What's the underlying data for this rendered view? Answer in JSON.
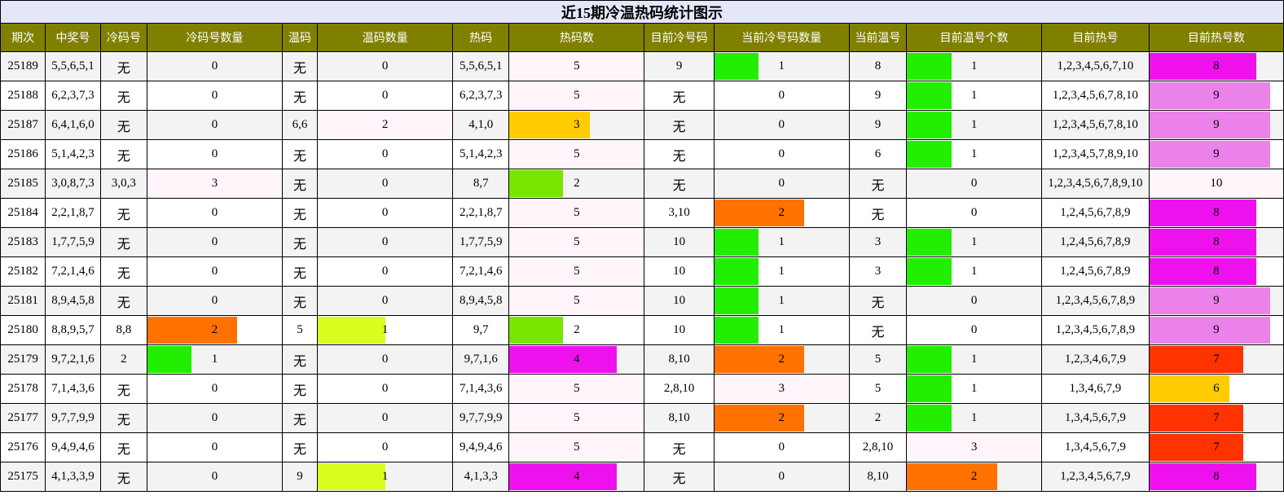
{
  "title": "近15期冷温热码统计图示",
  "headers": [
    "期次",
    "中奖号",
    "冷码号",
    "冷码号数量",
    "温码",
    "温码数量",
    "热码",
    "热码数",
    "目前冷号码",
    "当前冷号码数量",
    "当前温号",
    "目前温号个数",
    "目前热号",
    "目前热号数"
  ],
  "empty_text": "无",
  "colors": {
    "header_bg": "#808000",
    "title_bg": "#e4e6f9",
    "zero_tint": "#ffffff",
    "low_tint": "#fff5fb",
    "green": "#22ee00",
    "lime": "#77e600",
    "yellow_green": "#d8ff1f",
    "orange": "#ff7200",
    "gold": "#ffcc00",
    "red": "#ff3300",
    "magenta": "#ee11ee",
    "violet": "#ea82ea"
  },
  "rows": [
    {
      "period": "25189",
      "winning": "5,5,6,5,1",
      "cold": "无",
      "cold_count": {
        "value": "0",
        "fill": 0,
        "color": "zero_tint"
      },
      "warm": "无",
      "warm_count": {
        "value": "0",
        "fill": 0,
        "color": "zero_tint"
      },
      "hot": "5,5,6,5,1",
      "hot_count": {
        "value": "5",
        "fill": 1,
        "color": "low_tint"
      },
      "cur_cold": "9",
      "cur_cold_count": {
        "value": "1",
        "fill": 0.33,
        "color": "green"
      },
      "cur_warm": "8",
      "cur_warm_count": {
        "value": "1",
        "fill": 0.33,
        "color": "green"
      },
      "cur_hot": "1,2,3,4,5,6,7,10",
      "cur_hot_count": {
        "value": "8",
        "fill": 0.8,
        "color": "magenta"
      }
    },
    {
      "period": "25188",
      "winning": "6,2,3,7,3",
      "cold": "无",
      "cold_count": {
        "value": "0",
        "fill": 0,
        "color": "zero_tint"
      },
      "warm": "无",
      "warm_count": {
        "value": "0",
        "fill": 0,
        "color": "zero_tint"
      },
      "hot": "6,2,3,7,3",
      "hot_count": {
        "value": "5",
        "fill": 1,
        "color": "low_tint"
      },
      "cur_cold": "无",
      "cur_cold_count": {
        "value": "0",
        "fill": 0,
        "color": "zero_tint"
      },
      "cur_warm": "9",
      "cur_warm_count": {
        "value": "1",
        "fill": 0.33,
        "color": "green"
      },
      "cur_hot": "1,2,3,4,5,6,7,8,10",
      "cur_hot_count": {
        "value": "9",
        "fill": 0.9,
        "color": "violet"
      }
    },
    {
      "period": "25187",
      "winning": "6,4,1,6,0",
      "cold": "无",
      "cold_count": {
        "value": "0",
        "fill": 0,
        "color": "zero_tint"
      },
      "warm": "6,6",
      "warm_count": {
        "value": "2",
        "fill": 1,
        "color": "low_tint"
      },
      "hot": "4,1,0",
      "hot_count": {
        "value": "3",
        "fill": 0.6,
        "color": "gold"
      },
      "cur_cold": "无",
      "cur_cold_count": {
        "value": "0",
        "fill": 0,
        "color": "zero_tint"
      },
      "cur_warm": "9",
      "cur_warm_count": {
        "value": "1",
        "fill": 0.33,
        "color": "green"
      },
      "cur_hot": "1,2,3,4,5,6,7,8,10",
      "cur_hot_count": {
        "value": "9",
        "fill": 0.9,
        "color": "violet"
      }
    },
    {
      "period": "25186",
      "winning": "5,1,4,2,3",
      "cold": "无",
      "cold_count": {
        "value": "0",
        "fill": 0,
        "color": "zero_tint"
      },
      "warm": "无",
      "warm_count": {
        "value": "0",
        "fill": 0,
        "color": "zero_tint"
      },
      "hot": "5,1,4,2,3",
      "hot_count": {
        "value": "5",
        "fill": 1,
        "color": "low_tint"
      },
      "cur_cold": "无",
      "cur_cold_count": {
        "value": "0",
        "fill": 0,
        "color": "zero_tint"
      },
      "cur_warm": "6",
      "cur_warm_count": {
        "value": "1",
        "fill": 0.33,
        "color": "green"
      },
      "cur_hot": "1,2,3,4,5,7,8,9,10",
      "cur_hot_count": {
        "value": "9",
        "fill": 0.9,
        "color": "violet"
      }
    },
    {
      "period": "25185",
      "winning": "3,0,8,7,3",
      "cold": "3,0,3",
      "cold_count": {
        "value": "3",
        "fill": 1,
        "color": "low_tint"
      },
      "warm": "无",
      "warm_count": {
        "value": "0",
        "fill": 0,
        "color": "zero_tint"
      },
      "hot": "8,7",
      "hot_count": {
        "value": "2",
        "fill": 0.4,
        "color": "lime"
      },
      "cur_cold": "无",
      "cur_cold_count": {
        "value": "0",
        "fill": 0,
        "color": "zero_tint"
      },
      "cur_warm": "无",
      "cur_warm_count": {
        "value": "0",
        "fill": 0,
        "color": "zero_tint"
      },
      "cur_hot": "1,2,3,4,5,6,7,8,9,10",
      "cur_hot_count": {
        "value": "10",
        "fill": 1,
        "color": "low_tint"
      }
    },
    {
      "period": "25184",
      "winning": "2,2,1,8,7",
      "cold": "无",
      "cold_count": {
        "value": "0",
        "fill": 0,
        "color": "zero_tint"
      },
      "warm": "无",
      "warm_count": {
        "value": "0",
        "fill": 0,
        "color": "zero_tint"
      },
      "hot": "2,2,1,8,7",
      "hot_count": {
        "value": "5",
        "fill": 1,
        "color": "low_tint"
      },
      "cur_cold": "3,10",
      "cur_cold_count": {
        "value": "2",
        "fill": 0.67,
        "color": "orange"
      },
      "cur_warm": "无",
      "cur_warm_count": {
        "value": "0",
        "fill": 0,
        "color": "zero_tint"
      },
      "cur_hot": "1,2,4,5,6,7,8,9",
      "cur_hot_count": {
        "value": "8",
        "fill": 0.8,
        "color": "magenta"
      }
    },
    {
      "period": "25183",
      "winning": "1,7,7,5,9",
      "cold": "无",
      "cold_count": {
        "value": "0",
        "fill": 0,
        "color": "zero_tint"
      },
      "warm": "无",
      "warm_count": {
        "value": "0",
        "fill": 0,
        "color": "zero_tint"
      },
      "hot": "1,7,7,5,9",
      "hot_count": {
        "value": "5",
        "fill": 1,
        "color": "low_tint"
      },
      "cur_cold": "10",
      "cur_cold_count": {
        "value": "1",
        "fill": 0.33,
        "color": "green"
      },
      "cur_warm": "3",
      "cur_warm_count": {
        "value": "1",
        "fill": 0.33,
        "color": "green"
      },
      "cur_hot": "1,2,4,5,6,7,8,9",
      "cur_hot_count": {
        "value": "8",
        "fill": 0.8,
        "color": "magenta"
      }
    },
    {
      "period": "25182",
      "winning": "7,2,1,4,6",
      "cold": "无",
      "cold_count": {
        "value": "0",
        "fill": 0,
        "color": "zero_tint"
      },
      "warm": "无",
      "warm_count": {
        "value": "0",
        "fill": 0,
        "color": "zero_tint"
      },
      "hot": "7,2,1,4,6",
      "hot_count": {
        "value": "5",
        "fill": 1,
        "color": "low_tint"
      },
      "cur_cold": "10",
      "cur_cold_count": {
        "value": "1",
        "fill": 0.33,
        "color": "green"
      },
      "cur_warm": "3",
      "cur_warm_count": {
        "value": "1",
        "fill": 0.33,
        "color": "green"
      },
      "cur_hot": "1,2,4,5,6,7,8,9",
      "cur_hot_count": {
        "value": "8",
        "fill": 0.8,
        "color": "magenta"
      }
    },
    {
      "period": "25181",
      "winning": "8,9,4,5,8",
      "cold": "无",
      "cold_count": {
        "value": "0",
        "fill": 0,
        "color": "zero_tint"
      },
      "warm": "无",
      "warm_count": {
        "value": "0",
        "fill": 0,
        "color": "zero_tint"
      },
      "hot": "8,9,4,5,8",
      "hot_count": {
        "value": "5",
        "fill": 1,
        "color": "low_tint"
      },
      "cur_cold": "10",
      "cur_cold_count": {
        "value": "1",
        "fill": 0.33,
        "color": "green"
      },
      "cur_warm": "无",
      "cur_warm_count": {
        "value": "0",
        "fill": 0,
        "color": "zero_tint"
      },
      "cur_hot": "1,2,3,4,5,6,7,8,9",
      "cur_hot_count": {
        "value": "9",
        "fill": 0.9,
        "color": "violet"
      }
    },
    {
      "period": "25180",
      "winning": "8,8,9,5,7",
      "cold": "8,8",
      "cold_count": {
        "value": "2",
        "fill": 0.67,
        "color": "orange"
      },
      "warm": "5",
      "warm_count": {
        "value": "1",
        "fill": 0.5,
        "color": "yellow_green"
      },
      "hot": "9,7",
      "hot_count": {
        "value": "2",
        "fill": 0.4,
        "color": "lime"
      },
      "cur_cold": "10",
      "cur_cold_count": {
        "value": "1",
        "fill": 0.33,
        "color": "green"
      },
      "cur_warm": "无",
      "cur_warm_count": {
        "value": "0",
        "fill": 0,
        "color": "zero_tint"
      },
      "cur_hot": "1,2,3,4,5,6,7,8,9",
      "cur_hot_count": {
        "value": "9",
        "fill": 0.9,
        "color": "violet"
      }
    },
    {
      "period": "25179",
      "winning": "9,7,2,1,6",
      "cold": "2",
      "cold_count": {
        "value": "1",
        "fill": 0.33,
        "color": "green"
      },
      "warm": "无",
      "warm_count": {
        "value": "0",
        "fill": 0,
        "color": "zero_tint"
      },
      "hot": "9,7,1,6",
      "hot_count": {
        "value": "4",
        "fill": 0.8,
        "color": "magenta"
      },
      "cur_cold": "8,10",
      "cur_cold_count": {
        "value": "2",
        "fill": 0.67,
        "color": "orange"
      },
      "cur_warm": "5",
      "cur_warm_count": {
        "value": "1",
        "fill": 0.33,
        "color": "green"
      },
      "cur_hot": "1,2,3,4,6,7,9",
      "cur_hot_count": {
        "value": "7",
        "fill": 0.7,
        "color": "red"
      }
    },
    {
      "period": "25178",
      "winning": "7,1,4,3,6",
      "cold": "无",
      "cold_count": {
        "value": "0",
        "fill": 0,
        "color": "zero_tint"
      },
      "warm": "无",
      "warm_count": {
        "value": "0",
        "fill": 0,
        "color": "zero_tint"
      },
      "hot": "7,1,4,3,6",
      "hot_count": {
        "value": "5",
        "fill": 1,
        "color": "low_tint"
      },
      "cur_cold": "2,8,10",
      "cur_cold_count": {
        "value": "3",
        "fill": 1,
        "color": "low_tint"
      },
      "cur_warm": "5",
      "cur_warm_count": {
        "value": "1",
        "fill": 0.33,
        "color": "green"
      },
      "cur_hot": "1,3,4,6,7,9",
      "cur_hot_count": {
        "value": "6",
        "fill": 0.6,
        "color": "gold"
      }
    },
    {
      "period": "25177",
      "winning": "9,7,7,9,9",
      "cold": "无",
      "cold_count": {
        "value": "0",
        "fill": 0,
        "color": "zero_tint"
      },
      "warm": "无",
      "warm_count": {
        "value": "0",
        "fill": 0,
        "color": "zero_tint"
      },
      "hot": "9,7,7,9,9",
      "hot_count": {
        "value": "5",
        "fill": 1,
        "color": "low_tint"
      },
      "cur_cold": "8,10",
      "cur_cold_count": {
        "value": "2",
        "fill": 0.67,
        "color": "orange"
      },
      "cur_warm": "2",
      "cur_warm_count": {
        "value": "1",
        "fill": 0.33,
        "color": "green"
      },
      "cur_hot": "1,3,4,5,6,7,9",
      "cur_hot_count": {
        "value": "7",
        "fill": 0.7,
        "color": "red"
      }
    },
    {
      "period": "25176",
      "winning": "9,4,9,4,6",
      "cold": "无",
      "cold_count": {
        "value": "0",
        "fill": 0,
        "color": "zero_tint"
      },
      "warm": "无",
      "warm_count": {
        "value": "0",
        "fill": 0,
        "color": "zero_tint"
      },
      "hot": "9,4,9,4,6",
      "hot_count": {
        "value": "5",
        "fill": 1,
        "color": "low_tint"
      },
      "cur_cold": "无",
      "cur_cold_count": {
        "value": "0",
        "fill": 0,
        "color": "zero_tint"
      },
      "cur_warm": "2,8,10",
      "cur_warm_count": {
        "value": "3",
        "fill": 1,
        "color": "low_tint"
      },
      "cur_hot": "1,3,4,5,6,7,9",
      "cur_hot_count": {
        "value": "7",
        "fill": 0.7,
        "color": "red"
      }
    },
    {
      "period": "25175",
      "winning": "4,1,3,3,9",
      "cold": "无",
      "cold_count": {
        "value": "0",
        "fill": 0,
        "color": "zero_tint"
      },
      "warm": "9",
      "warm_count": {
        "value": "1",
        "fill": 0.5,
        "color": "yellow_green"
      },
      "hot": "4,1,3,3",
      "hot_count": {
        "value": "4",
        "fill": 0.8,
        "color": "magenta"
      },
      "cur_cold": "无",
      "cur_cold_count": {
        "value": "0",
        "fill": 0,
        "color": "zero_tint"
      },
      "cur_warm": "8,10",
      "cur_warm_count": {
        "value": "2",
        "fill": 0.67,
        "color": "orange"
      },
      "cur_hot": "1,2,3,4,5,6,7,9",
      "cur_hot_count": {
        "value": "8",
        "fill": 0.8,
        "color": "magenta"
      }
    }
  ]
}
